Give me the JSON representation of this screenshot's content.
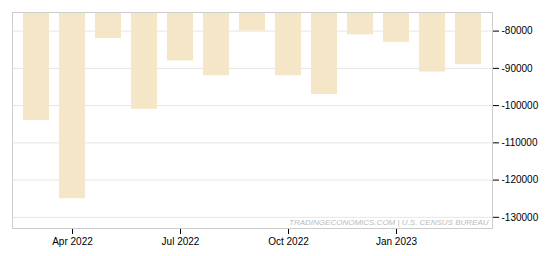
{
  "chart_data": {
    "type": "bar",
    "categories": [
      null,
      "Apr 2022",
      null,
      null,
      "Jul 2022",
      null,
      null,
      "Oct 2022",
      null,
      null,
      "Jan 2023",
      null,
      null
    ],
    "values": [
      -104000,
      -125000,
      -82000,
      -101000,
      -88000,
      -92000,
      -80000,
      -92000,
      -97000,
      -81000,
      -83000,
      -91000,
      -89000
    ],
    "color": "#f5e6c8",
    "ylim": [
      -133000,
      -75000
    ],
    "yticks": [
      -80000,
      -90000,
      -100000,
      -110000,
      -120000,
      -130000
    ],
    "grid": true,
    "annotations": [
      "TRADINGECONOMICS.COM | U.S. CENSUS BUREAU"
    ]
  }
}
